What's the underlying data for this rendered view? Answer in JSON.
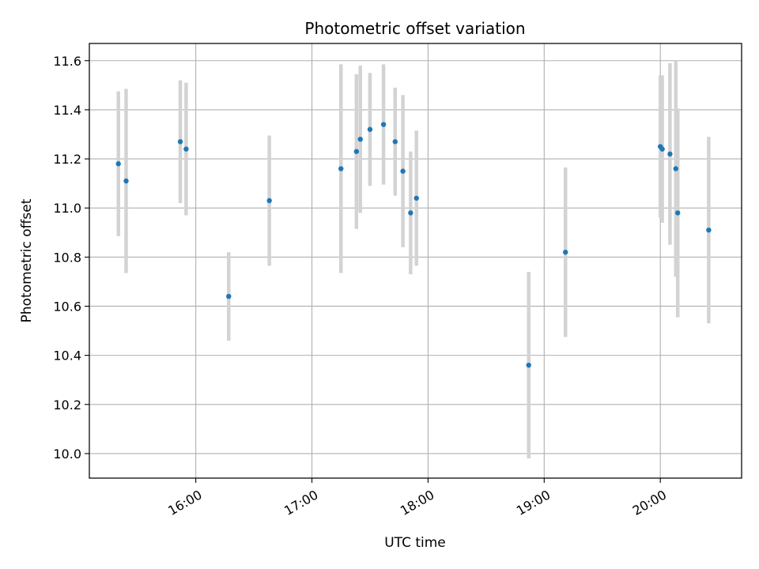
{
  "chart_data": {
    "type": "scatter",
    "title": "Photometric offset variation",
    "xlabel": "UTC time",
    "ylabel": "Photometric offset",
    "xlim": [
      "15:05",
      "20:42"
    ],
    "ylim": [
      9.9,
      11.67
    ],
    "grid": true,
    "x_ticks": [
      "16:00",
      "17:00",
      "18:00",
      "19:00",
      "20:00"
    ],
    "y_ticks": [
      "10.0",
      "10.2",
      "10.4",
      "10.6",
      "10.8",
      "11.0",
      "11.2",
      "11.4",
      "11.6"
    ],
    "colors": {
      "point": "#1f77b4",
      "errorbar": "#d3d3d3",
      "grid": "#b0b0b0"
    },
    "points": [
      {
        "x": "15:20",
        "y": 11.18,
        "yerr": 0.295
      },
      {
        "x": "15:24",
        "y": 11.11,
        "yerr": 0.375
      },
      {
        "x": "15:52",
        "y": 11.27,
        "yerr": 0.25
      },
      {
        "x": "15:55",
        "y": 11.24,
        "yerr": 0.27
      },
      {
        "x": "16:17",
        "y": 10.64,
        "yerr": 0.18
      },
      {
        "x": "16:38",
        "y": 11.03,
        "yerr": 0.265
      },
      {
        "x": "17:15",
        "y": 11.16,
        "yerr": 0.425
      },
      {
        "x": "17:23",
        "y": 11.23,
        "yerr": 0.315
      },
      {
        "x": "17:25",
        "y": 11.28,
        "yerr": 0.3
      },
      {
        "x": "17:30",
        "y": 11.32,
        "yerr": 0.23
      },
      {
        "x": "17:37",
        "y": 11.34,
        "yerr": 0.245
      },
      {
        "x": "17:43",
        "y": 11.27,
        "yerr": 0.22
      },
      {
        "x": "17:47",
        "y": 11.15,
        "yerr": 0.31
      },
      {
        "x": "17:51",
        "y": 10.98,
        "yerr": 0.25
      },
      {
        "x": "17:54",
        "y": 11.04,
        "yerr": 0.275
      },
      {
        "x": "18:52",
        "y": 10.36,
        "yerr": 0.38
      },
      {
        "x": "19:11",
        "y": 10.82,
        "yerr": 0.345
      },
      {
        "x": "20:00",
        "y": 11.25,
        "yerr": 0.29
      },
      {
        "x": "20:01",
        "y": 11.24,
        "yerr": 0.3
      },
      {
        "x": "20:05",
        "y": 11.22,
        "yerr": 0.37
      },
      {
        "x": "20:08",
        "y": 11.16,
        "yerr": 0.44
      },
      {
        "x": "20:09",
        "y": 10.98,
        "yerr": 0.425
      },
      {
        "x": "20:25",
        "y": 10.91,
        "yerr": 0.38
      }
    ]
  }
}
